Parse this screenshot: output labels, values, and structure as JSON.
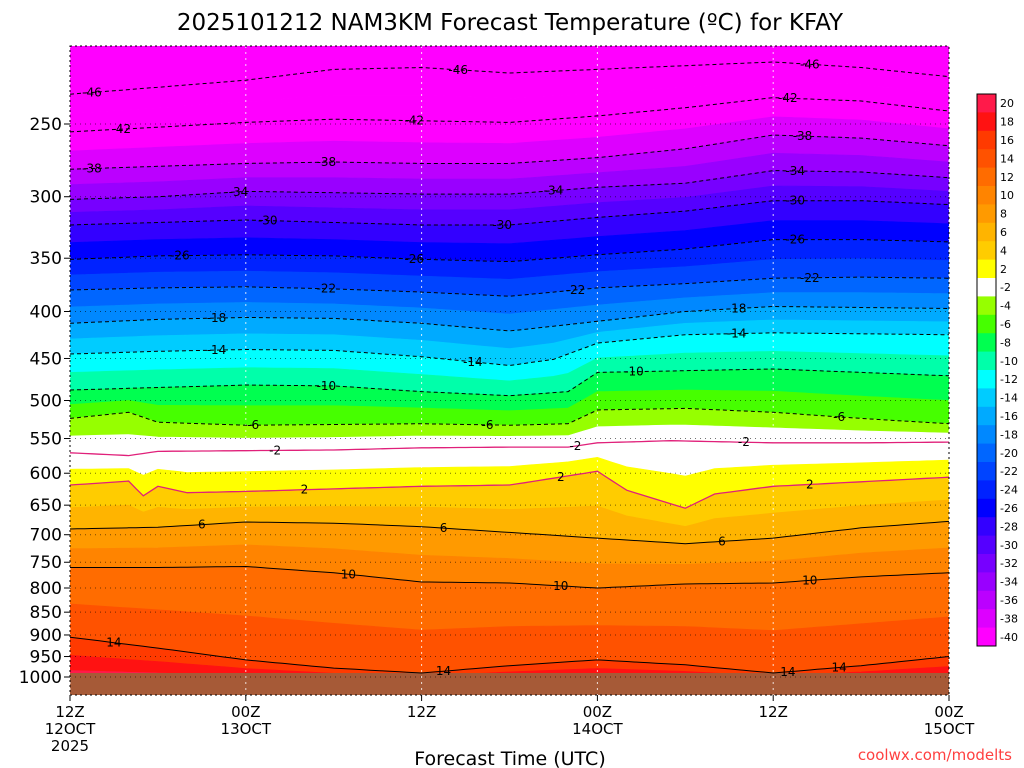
{
  "title": "2025101212 NAM3KM Forecast Temperature (ºC) for KFAY",
  "credit": "coolwx.com/modelts",
  "chart_data": {
    "type": "heatmap",
    "title": "2025101212 NAM3KM Forecast Temperature (ºC) for KFAY",
    "xlabel": "Forecast Time (UTC)",
    "ylabel": "",
    "y_scale": "log",
    "y_inverted": true,
    "ylim": [
      1010,
      200
    ],
    "xlim": [
      0,
      60
    ],
    "x_ticks": [
      {
        "value": 0,
        "line1": "12Z",
        "line2": "12OCT",
        "line3": "2025"
      },
      {
        "value": 12,
        "line1": "00Z",
        "line2": "13OCT",
        "line3": ""
      },
      {
        "value": 24,
        "line1": "12Z",
        "line2": "",
        "line3": ""
      },
      {
        "value": 36,
        "line1": "00Z",
        "line2": "14OCT",
        "line3": ""
      },
      {
        "value": 48,
        "line1": "12Z",
        "line2": "",
        "line3": ""
      },
      {
        "value": 60,
        "line1": "00Z",
        "line2": "15OCT",
        "line3": ""
      }
    ],
    "y_ticks": [
      "250",
      "300",
      "350",
      "400",
      "450",
      "500",
      "550",
      "600",
      "650",
      "700",
      "750",
      "800",
      "850",
      "900",
      "950",
      "1000"
    ],
    "grid": true,
    "colorbar": {
      "placement": "right",
      "labels": [
        "20",
        "18",
        "16",
        "14",
        "12",
        "10",
        "8",
        "6",
        "4",
        "2",
        "-2",
        "-4",
        "-6",
        "-8",
        "-10",
        "-12",
        "-14",
        "-16",
        "-18",
        "-20",
        "-22",
        "-24",
        "-26",
        "-28",
        "-30",
        "-32",
        "-34",
        "-36",
        "-38",
        "-40"
      ],
      "colors": [
        "#ff1a4a",
        "#ff1212",
        "#ff3a00",
        "#ff5200",
        "#ff6c00",
        "#ff8400",
        "#ff9a00",
        "#ffb400",
        "#ffcc00",
        "#ffff00",
        "#ffffff",
        "#96ff00",
        "#46ff00",
        "#00ff50",
        "#00ffaa",
        "#00ffff",
        "#00ccff",
        "#00aaff",
        "#0088ff",
        "#0066ff",
        "#0044ff",
        "#0022ff",
        "#0000ff",
        "#3300ff",
        "#5500ff",
        "#7700ff",
        "#9900ff",
        "#bb00ff",
        "#dd00ff",
        "#ff00ff"
      ]
    },
    "ground_pressure": 1000,
    "contours": [
      {
        "value": -46,
        "label": "-46",
        "points": [
          [
            0,
            232
          ],
          [
            6,
            228
          ],
          [
            12,
            224
          ],
          [
            18,
            218
          ],
          [
            24,
            217
          ],
          [
            30,
            220
          ],
          [
            36,
            218
          ],
          [
            42,
            216
          ],
          [
            48,
            214
          ],
          [
            54,
            217
          ],
          [
            60,
            222
          ]
        ],
        "labels_at": [
          1.5,
          26.5,
          50.5
        ]
      },
      {
        "value": -42,
        "label": "-42",
        "points": [
          [
            0,
            255
          ],
          [
            6,
            252
          ],
          [
            12,
            249
          ],
          [
            18,
            247
          ],
          [
            24,
            248
          ],
          [
            30,
            249
          ],
          [
            36,
            245
          ],
          [
            42,
            240
          ],
          [
            48,
            234
          ],
          [
            54,
            236
          ],
          [
            60,
            242
          ]
        ],
        "labels_at": [
          3.5,
          23.5,
          49
        ]
      },
      {
        "value": -38,
        "label": "-38",
        "points": [
          [
            0,
            280
          ],
          [
            6,
            278
          ],
          [
            12,
            276
          ],
          [
            18,
            275
          ],
          [
            24,
            276
          ],
          [
            30,
            276
          ],
          [
            36,
            272
          ],
          [
            42,
            266
          ],
          [
            48,
            257
          ],
          [
            54,
            259
          ],
          [
            60,
            264
          ]
        ],
        "labels_at": [
          1.5,
          17.5,
          50
        ]
      },
      {
        "value": -34,
        "label": "-34",
        "points": [
          [
            0,
            302
          ],
          [
            6,
            300
          ],
          [
            12,
            296
          ],
          [
            18,
            297
          ],
          [
            24,
            298
          ],
          [
            30,
            298
          ],
          [
            36,
            293
          ],
          [
            42,
            290
          ],
          [
            48,
            281
          ],
          [
            54,
            282
          ],
          [
            60,
            286
          ]
        ],
        "labels_at": [
          11.5,
          33,
          49.5
        ]
      },
      {
        "value": -30,
        "label": "-30",
        "points": [
          [
            0,
            322
          ],
          [
            6,
            320
          ],
          [
            12,
            318
          ],
          [
            18,
            320
          ],
          [
            24,
            322
          ],
          [
            30,
            322
          ],
          [
            36,
            316
          ],
          [
            42,
            311
          ],
          [
            48,
            303
          ],
          [
            54,
            303
          ],
          [
            60,
            306
          ]
        ],
        "labels_at": [
          13.5,
          29.5,
          49.5
        ]
      },
      {
        "value": -26,
        "label": "-26",
        "points": [
          [
            0,
            351
          ],
          [
            6,
            348
          ],
          [
            12,
            347
          ],
          [
            18,
            348
          ],
          [
            24,
            351
          ],
          [
            30,
            353
          ],
          [
            36,
            347
          ],
          [
            42,
            342
          ],
          [
            48,
            334
          ],
          [
            54,
            334
          ],
          [
            60,
            336
          ]
        ],
        "labels_at": [
          7.5,
          23.5,
          49.5
        ]
      },
      {
        "value": -22,
        "label": "-22",
        "points": [
          [
            0,
            379
          ],
          [
            6,
            377
          ],
          [
            12,
            376
          ],
          [
            18,
            378
          ],
          [
            24,
            381
          ],
          [
            30,
            385
          ],
          [
            36,
            377
          ],
          [
            42,
            373
          ],
          [
            48,
            368
          ],
          [
            54,
            367
          ],
          [
            60,
            368
          ]
        ],
        "labels_at": [
          17.5,
          34.5,
          50.5
        ]
      },
      {
        "value": -18,
        "label": "-18",
        "points": [
          [
            0,
            412
          ],
          [
            6,
            408
          ],
          [
            12,
            406
          ],
          [
            18,
            407
          ],
          [
            24,
            412
          ],
          [
            30,
            420
          ],
          [
            36,
            410
          ],
          [
            42,
            400
          ],
          [
            48,
            395
          ],
          [
            54,
            396
          ],
          [
            60,
            397
          ]
        ],
        "labels_at": [
          10,
          45.5
        ]
      },
      {
        "value": -14,
        "label": "-14",
        "points": [
          [
            0,
            445
          ],
          [
            6,
            442
          ],
          [
            12,
            440
          ],
          [
            18,
            441
          ],
          [
            24,
            448
          ],
          [
            30,
            458
          ],
          [
            33,
            451
          ],
          [
            36,
            433
          ],
          [
            42,
            424
          ],
          [
            48,
            422
          ],
          [
            54,
            423
          ],
          [
            60,
            424
          ]
        ],
        "labels_at": [
          10,
          27.5,
          45.5
        ]
      },
      {
        "value": -10,
        "label": "-10",
        "points": [
          [
            0,
            487
          ],
          [
            6,
            484
          ],
          [
            12,
            481
          ],
          [
            18,
            482
          ],
          [
            24,
            489
          ],
          [
            30,
            494
          ],
          [
            34,
            489
          ],
          [
            36,
            466
          ],
          [
            42,
            464
          ],
          [
            48,
            462
          ],
          [
            54,
            466
          ],
          [
            60,
            470
          ]
        ],
        "labels_at": [
          17.5,
          38.5
        ]
      },
      {
        "value": -6,
        "label": "-6",
        "points": [
          [
            0,
            523
          ],
          [
            4,
            515
          ],
          [
            6,
            528
          ],
          [
            12,
            532
          ],
          [
            18,
            531
          ],
          [
            24,
            530
          ],
          [
            30,
            532
          ],
          [
            34,
            530
          ],
          [
            36,
            512
          ],
          [
            42,
            510
          ],
          [
            48,
            515
          ],
          [
            54,
            523
          ],
          [
            60,
            530
          ]
        ],
        "labels_at": [
          12.5,
          28.5,
          52.5
        ]
      },
      {
        "value": -2,
        "label": "-2",
        "points": [
          [
            0,
            570
          ],
          [
            4,
            574
          ],
          [
            6,
            568
          ],
          [
            12,
            567
          ],
          [
            18,
            566
          ],
          [
            24,
            563
          ],
          [
            30,
            562
          ],
          [
            34,
            562
          ],
          [
            36,
            556
          ],
          [
            41,
            553
          ],
          [
            48,
            556
          ],
          [
            54,
            556
          ],
          [
            60,
            555
          ]
        ],
        "labels_at": [
          14,
          34.5,
          46
        ]
      },
      {
        "value": 2,
        "label": "2",
        "points": [
          [
            0,
            618
          ],
          [
            4,
            612
          ],
          [
            5,
            635
          ],
          [
            6,
            620
          ],
          [
            8,
            630
          ],
          [
            12,
            628
          ],
          [
            18,
            624
          ],
          [
            24,
            620
          ],
          [
            30,
            618
          ],
          [
            36,
            597
          ],
          [
            38,
            626
          ],
          [
            42,
            655
          ],
          [
            44,
            632
          ],
          [
            48,
            620
          ],
          [
            54,
            613
          ],
          [
            60,
            606
          ]
        ],
        "labels_at": [
          16,
          33.5,
          50.5
        ]
      },
      {
        "value": 6,
        "label": "6",
        "points": [
          [
            0,
            690
          ],
          [
            6,
            687
          ],
          [
            12,
            678
          ],
          [
            18,
            680
          ],
          [
            24,
            686
          ],
          [
            30,
            696
          ],
          [
            36,
            706
          ],
          [
            42,
            716
          ],
          [
            48,
            706
          ],
          [
            54,
            688
          ],
          [
            60,
            677
          ]
        ],
        "labels_at": [
          9,
          25.5,
          44.5
        ]
      },
      {
        "value": 10,
        "label": "10",
        "points": [
          [
            0,
            760
          ],
          [
            6,
            760
          ],
          [
            12,
            758
          ],
          [
            18,
            770
          ],
          [
            24,
            788
          ],
          [
            30,
            790
          ],
          [
            36,
            800
          ],
          [
            42,
            792
          ],
          [
            48,
            790
          ],
          [
            54,
            778
          ],
          [
            60,
            770
          ]
        ],
        "labels_at": [
          19,
          33.5,
          50.5
        ]
      },
      {
        "value": 14,
        "label": "14",
        "points": [
          [
            0,
            905
          ],
          [
            6,
            930
          ],
          [
            12,
            958
          ],
          [
            18,
            978
          ],
          [
            24,
            990
          ],
          [
            30,
            972
          ],
          [
            36,
            958
          ],
          [
            42,
            970
          ],
          [
            48,
            990
          ],
          [
            54,
            972
          ],
          [
            60,
            950
          ]
        ],
        "labels_at": [
          3,
          25.5,
          49,
          52.5
        ]
      }
    ]
  }
}
